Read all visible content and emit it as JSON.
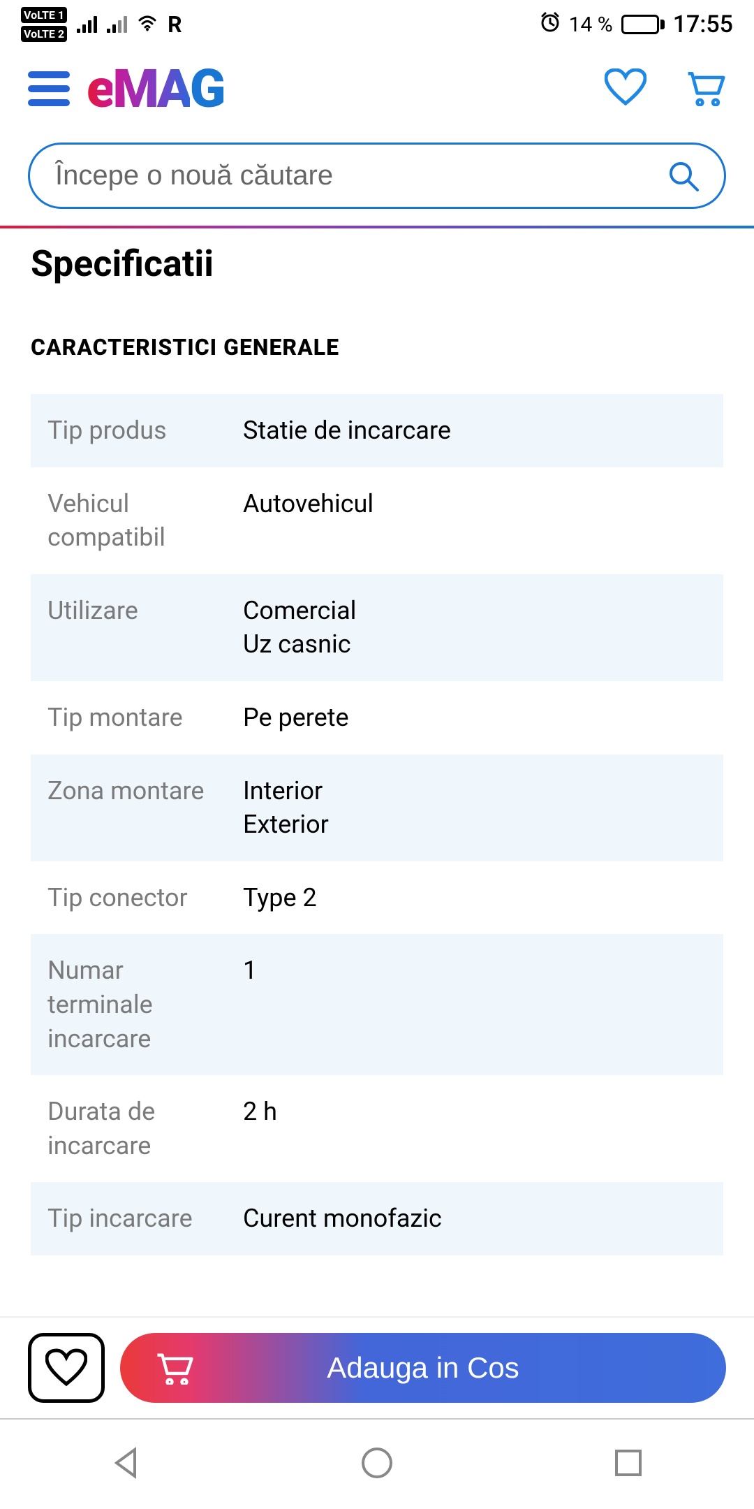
{
  "status": {
    "volte1": "VoLTE 1",
    "volte2": "VoLTE 2",
    "roaming": "R",
    "battery_pct": "14 %",
    "battery_fill_pct": 14,
    "time": "17:55"
  },
  "header": {
    "logo_e": "e",
    "logo_m": "M",
    "logo_a": "A",
    "logo_g": "G"
  },
  "search": {
    "placeholder": "Începe o nouă căutare"
  },
  "page": {
    "title": "Specificatii",
    "section": "CARACTERISTICI GENERALE"
  },
  "specs": [
    {
      "label": "Tip produs",
      "value": "Statie de incarcare"
    },
    {
      "label": "Vehicul compatibil",
      "value": "Autovehicul"
    },
    {
      "label": "Utilizare",
      "value": "Comercial\nUz casnic"
    },
    {
      "label": "Tip montare",
      "value": "Pe perete"
    },
    {
      "label": "Zona montare",
      "value": "Interior\nExterior"
    },
    {
      "label": "Tip conector",
      "value": "Type 2"
    },
    {
      "label": "Numar terminale incarcare",
      "value": "1"
    },
    {
      "label": "Durata de incarcare",
      "value": "2 h"
    },
    {
      "label": "Tip incarcare",
      "value": "Curent monofazic"
    }
  ],
  "cta": {
    "add_to_cart": "Adauga in Cos"
  },
  "colors": {
    "primary_blue": "#1976d2",
    "row_alt_bg": "#eff6fc",
    "label_gray": "#7a7a7a"
  }
}
